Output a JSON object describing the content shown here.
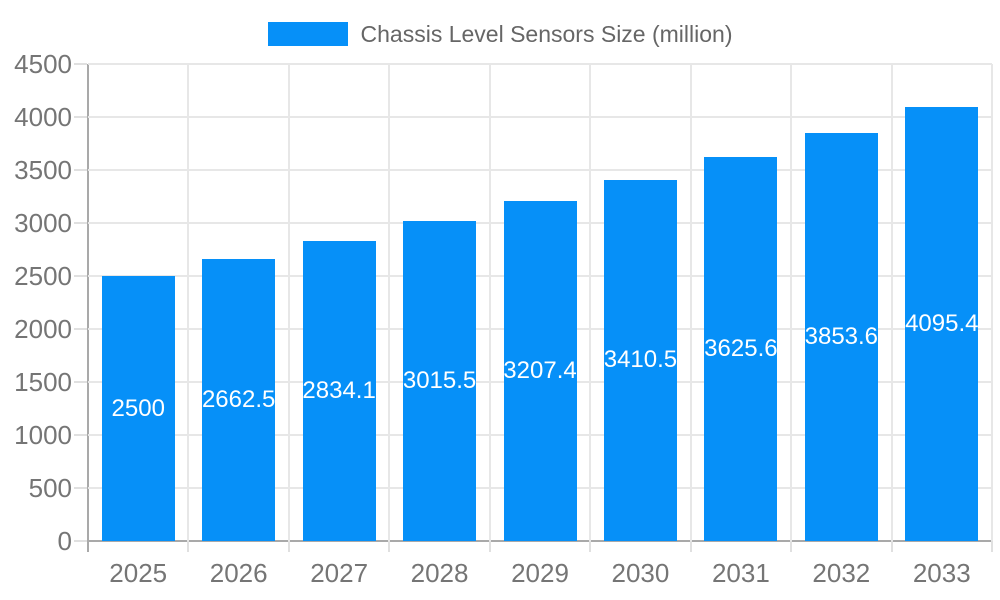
{
  "chart_data": {
    "type": "bar",
    "title": "Chassis Level Sensors Size (million)",
    "legend": "Chassis Level Sensors Size (million)",
    "legend_position": "top",
    "categories": [
      "2025",
      "2026",
      "2027",
      "2028",
      "2029",
      "2030",
      "2031",
      "2032",
      "2033"
    ],
    "values": [
      2500,
      2662.5,
      2834.1,
      3015.5,
      3207.4,
      3410.5,
      3625.6,
      3853.6,
      4095.4
    ],
    "value_labels": [
      "2500",
      "2662.5",
      "2834.1",
      "3015.5",
      "3207.4",
      "3410.5",
      "3625.6",
      "3853.6",
      "4095.4"
    ],
    "xlabel": "",
    "ylabel": "",
    "ylim": [
      0,
      4500
    ],
    "ytick_step": 500,
    "yticks": [
      0,
      500,
      1000,
      1500,
      2000,
      2500,
      3000,
      3500,
      4000,
      4500
    ],
    "grid": true,
    "colors": {
      "bar": "#0690f8",
      "bar_value_text": "#ffffff",
      "axis_line": "#a9a9a9",
      "gridline": "#e7e7e7",
      "tick": "#e0e0e0",
      "axis_text": "#757575",
      "legend_text": "#666666",
      "background": "#ffffff"
    }
  }
}
